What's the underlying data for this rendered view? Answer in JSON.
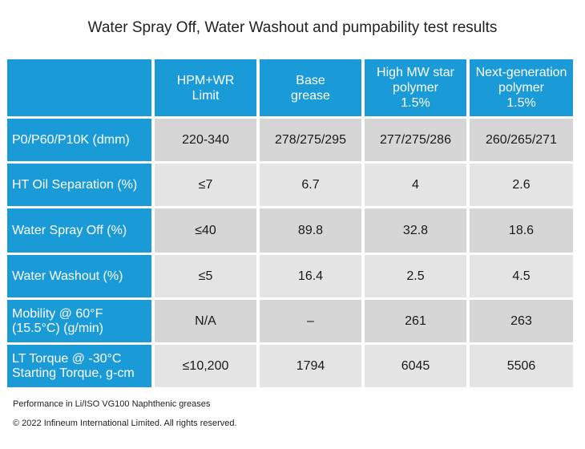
{
  "title": "Water Spray Off, Water Washout and pumpability test results",
  "columns": [
    [
      "HPM+WR",
      "Limit"
    ],
    [
      "Base",
      "grease"
    ],
    [
      "High MW star",
      "polymer",
      "1.5%"
    ],
    [
      "Next-generation",
      "polymer",
      "1.5%"
    ]
  ],
  "rows": [
    {
      "label": [
        "P0/P60/P10K (dmm)"
      ],
      "values": [
        "220-340",
        "278/275/295",
        "277/275/286",
        "260/265/271"
      ]
    },
    {
      "label": [
        "HT Oil Separation (%)"
      ],
      "values": [
        "≤7",
        "6.7",
        "4",
        "2.6"
      ]
    },
    {
      "label": [
        "Water Spray Off (%)"
      ],
      "values": [
        "≤40",
        "89.8",
        "32.8",
        "18.6"
      ]
    },
    {
      "label": [
        "Water Washout (%)"
      ],
      "values": [
        "≤5",
        "16.4",
        "2.5",
        "4.5"
      ]
    },
    {
      "label": [
        "Mobility @ 60°F",
        "(15.5°C) (g/min)"
      ],
      "values": [
        "N/A",
        "–",
        "261",
        "263"
      ]
    },
    {
      "label": [
        "LT Torque @ -30°C",
        "Starting Torque, g-cm"
      ],
      "values": [
        "≤10,200",
        "1794",
        "6045",
        "5506"
      ]
    }
  ],
  "footnote": "Performance in Li/ISO VG100 Naphthenic greases",
  "copyright": "© 2022 Infineum International Limited. All rights reserved."
}
